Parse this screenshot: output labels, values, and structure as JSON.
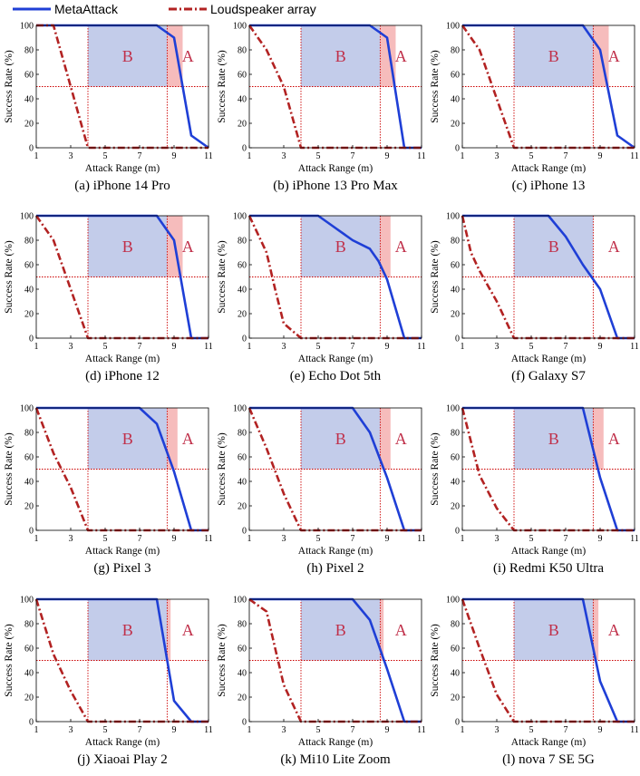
{
  "legend": {
    "entries": [
      {
        "name": "MetaAttack",
        "color": "#1f3fd6",
        "style": "solid"
      },
      {
        "name": "Loudspeaker array",
        "color": "#b22222",
        "style": "dashdot"
      }
    ]
  },
  "colors": {
    "meta": "#1f3fd6",
    "loud": "#b22222",
    "region_b": "#b9c3e6",
    "region_a": "#f5b5b5",
    "guide": "#cc0000",
    "region_text": "#c0304a"
  },
  "chart_data": [
    {
      "type": "line",
      "title": "(a) iPhone 14 Pro",
      "xlabel": "Attack Range (m)",
      "ylabel": "Success Rate (%)",
      "xlim": [
        1,
        11
      ],
      "ylim": [
        0,
        100
      ],
      "xticks": [
        1,
        3,
        5,
        7,
        9,
        11
      ],
      "yticks": [
        0,
        20,
        40,
        60,
        80,
        100
      ],
      "region_b": [
        4,
        8.6
      ],
      "region_a": [
        8.6,
        9.5
      ],
      "region_labels": {
        "a": "A",
        "b": "B"
      },
      "series": [
        {
          "name": "MetaAttack",
          "x": [
            1,
            2,
            3,
            4,
            5,
            6,
            7,
            8,
            9,
            10,
            11
          ],
          "y": [
            100,
            100,
            100,
            100,
            100,
            100,
            100,
            100,
            90,
            10,
            0
          ]
        },
        {
          "name": "Loudspeaker array",
          "x": [
            1,
            2,
            3,
            4,
            5,
            6,
            7,
            8,
            9,
            10,
            11
          ],
          "y": [
            100,
            100,
            50,
            0,
            0,
            0,
            0,
            0,
            0,
            0,
            0
          ]
        }
      ]
    },
    {
      "type": "line",
      "title": "(b) iPhone 13 Pro Max",
      "xlabel": "Attack Range (m)",
      "ylabel": "Success Rate (%)",
      "xlim": [
        1,
        11
      ],
      "ylim": [
        0,
        100
      ],
      "xticks": [
        1,
        3,
        5,
        7,
        9,
        11
      ],
      "yticks": [
        0,
        20,
        40,
        60,
        80,
        100
      ],
      "region_b": [
        4,
        8.6
      ],
      "region_a": [
        8.6,
        9.5
      ],
      "region_labels": {
        "a": "A",
        "b": "B"
      },
      "series": [
        {
          "name": "MetaAttack",
          "x": [
            1,
            2,
            3,
            4,
            5,
            6,
            7,
            8,
            9,
            10,
            11
          ],
          "y": [
            100,
            100,
            100,
            100,
            100,
            100,
            100,
            100,
            90,
            0,
            0
          ]
        },
        {
          "name": "Loudspeaker array",
          "x": [
            1,
            2,
            3,
            4,
            5,
            6,
            7,
            8,
            9,
            10,
            11
          ],
          "y": [
            100,
            80,
            50,
            0,
            0,
            0,
            0,
            0,
            0,
            0,
            0
          ]
        }
      ]
    },
    {
      "type": "line",
      "title": "(c) iPhone 13",
      "xlabel": "Attack Range (m)",
      "ylabel": "Success Rate (%)",
      "xlim": [
        1,
        11
      ],
      "ylim": [
        0,
        100
      ],
      "xticks": [
        1,
        3,
        5,
        7,
        9,
        11
      ],
      "yticks": [
        0,
        20,
        40,
        60,
        80,
        100
      ],
      "region_b": [
        4,
        8.6
      ],
      "region_a": [
        8.6,
        9.5
      ],
      "region_labels": {
        "a": "A",
        "b": "B"
      },
      "series": [
        {
          "name": "MetaAttack",
          "x": [
            1,
            2,
            3,
            4,
            5,
            6,
            7,
            8,
            9,
            10,
            11
          ],
          "y": [
            100,
            100,
            100,
            100,
            100,
            100,
            100,
            100,
            80,
            10,
            0
          ]
        },
        {
          "name": "Loudspeaker array",
          "x": [
            1,
            2,
            3,
            4,
            5,
            6,
            7,
            8,
            9,
            10,
            11
          ],
          "y": [
            100,
            80,
            40,
            0,
            0,
            0,
            0,
            0,
            0,
            0,
            0
          ]
        }
      ]
    },
    {
      "type": "line",
      "title": "(d) iPhone 12",
      "xlabel": "Attack Range (m)",
      "ylabel": "Success Rate (%)",
      "xlim": [
        1,
        11
      ],
      "ylim": [
        0,
        100
      ],
      "xticks": [
        1,
        3,
        5,
        7,
        9,
        11
      ],
      "yticks": [
        0,
        20,
        40,
        60,
        80,
        100
      ],
      "region_b": [
        4,
        8.6
      ],
      "region_a": [
        8.6,
        9.5
      ],
      "region_labels": {
        "a": "A",
        "b": "B"
      },
      "series": [
        {
          "name": "MetaAttack",
          "x": [
            1,
            2,
            3,
            4,
            5,
            6,
            7,
            8,
            9,
            10,
            11
          ],
          "y": [
            100,
            100,
            100,
            100,
            100,
            100,
            100,
            100,
            80,
            0,
            0
          ]
        },
        {
          "name": "Loudspeaker array",
          "x": [
            1,
            2,
            3,
            4,
            5,
            6,
            7,
            8,
            9,
            10,
            11
          ],
          "y": [
            100,
            80,
            40,
            0,
            0,
            0,
            0,
            0,
            0,
            0,
            0
          ]
        }
      ]
    },
    {
      "type": "line",
      "title": "(e) Echo Dot 5th",
      "xlabel": "Attack Range (m)",
      "ylabel": "Success Rate (%)",
      "xlim": [
        1,
        11
      ],
      "ylim": [
        0,
        100
      ],
      "xticks": [
        1,
        3,
        5,
        7,
        9,
        11
      ],
      "yticks": [
        0,
        20,
        40,
        60,
        80,
        100
      ],
      "region_b": [
        4,
        8.6
      ],
      "region_a": [
        8.6,
        9.2
      ],
      "region_labels": {
        "a": "A",
        "b": "B"
      },
      "series": [
        {
          "name": "MetaAttack",
          "x": [
            1,
            2,
            3,
            4,
            5,
            6,
            7,
            8,
            8.5,
            9,
            10,
            11
          ],
          "y": [
            100,
            100,
            100,
            100,
            100,
            90,
            80,
            73,
            63,
            48,
            0,
            0
          ]
        },
        {
          "name": "Loudspeaker array",
          "x": [
            1,
            2,
            2.5,
            3,
            4,
            5,
            6,
            7,
            8,
            9,
            10,
            11
          ],
          "y": [
            100,
            70,
            40,
            12,
            0,
            0,
            0,
            0,
            0,
            0,
            0,
            0
          ]
        }
      ]
    },
    {
      "type": "line",
      "title": "(f) Galaxy S7",
      "xlabel": "Attack Range (m)",
      "ylabel": "Success Rate (%)",
      "xlim": [
        1,
        11
      ],
      "ylim": [
        0,
        100
      ],
      "xticks": [
        1,
        3,
        5,
        7,
        9,
        11
      ],
      "yticks": [
        0,
        20,
        40,
        60,
        80,
        100
      ],
      "region_b": [
        4,
        8.6
      ],
      "region_a": null,
      "region_labels": {
        "a": "A",
        "b": "B"
      },
      "series": [
        {
          "name": "MetaAttack",
          "x": [
            1,
            2,
            3,
            4,
            5,
            6,
            7,
            8,
            9,
            10,
            11
          ],
          "y": [
            100,
            100,
            100,
            100,
            100,
            100,
            83,
            60,
            40,
            0,
            0
          ]
        },
        {
          "name": "Loudspeaker array",
          "x": [
            1,
            1.5,
            2,
            3,
            4,
            5,
            6,
            7,
            8,
            9,
            10,
            11
          ],
          "y": [
            100,
            70,
            55,
            30,
            0,
            0,
            0,
            0,
            0,
            0,
            0,
            0
          ]
        }
      ]
    },
    {
      "type": "line",
      "title": "(g) Pixel 3",
      "xlabel": "Attack Range (m)",
      "ylabel": "Success Rate (%)",
      "xlim": [
        1,
        11
      ],
      "ylim": [
        0,
        100
      ],
      "xticks": [
        1,
        3,
        5,
        7,
        9,
        11
      ],
      "yticks": [
        0,
        20,
        40,
        60,
        80,
        100
      ],
      "region_b": [
        4,
        8.6
      ],
      "region_a": [
        8.6,
        9.2
      ],
      "region_labels": {
        "a": "A",
        "b": "B"
      },
      "series": [
        {
          "name": "MetaAttack",
          "x": [
            1,
            2,
            3,
            4,
            5,
            6,
            7,
            8,
            9,
            10,
            11
          ],
          "y": [
            100,
            100,
            100,
            100,
            100,
            100,
            100,
            87,
            48,
            0,
            0
          ]
        },
        {
          "name": "Loudspeaker array",
          "x": [
            1,
            2,
            3,
            4,
            5,
            6,
            7,
            8,
            9,
            10,
            11
          ],
          "y": [
            100,
            63,
            35,
            0,
            0,
            0,
            0,
            0,
            0,
            0,
            0
          ]
        }
      ]
    },
    {
      "type": "line",
      "title": "(h) Pixel 2",
      "xlabel": "Attack Range (m)",
      "ylabel": "Success Rate (%)",
      "xlim": [
        1,
        11
      ],
      "ylim": [
        0,
        100
      ],
      "xticks": [
        1,
        3,
        5,
        7,
        9,
        11
      ],
      "yticks": [
        0,
        20,
        40,
        60,
        80,
        100
      ],
      "region_b": [
        4,
        8.6
      ],
      "region_a": [
        8.6,
        9.2
      ],
      "region_labels": {
        "a": "A",
        "b": "B"
      },
      "series": [
        {
          "name": "MetaAttack",
          "x": [
            1,
            2,
            3,
            4,
            5,
            6,
            7,
            8,
            9,
            10,
            11
          ],
          "y": [
            100,
            100,
            100,
            100,
            100,
            100,
            100,
            80,
            43,
            0,
            0
          ]
        },
        {
          "name": "Loudspeaker array",
          "x": [
            1,
            2,
            3,
            4,
            5,
            6,
            7,
            8,
            9,
            10,
            11
          ],
          "y": [
            100,
            67,
            30,
            0,
            0,
            0,
            0,
            0,
            0,
            0,
            0
          ]
        }
      ]
    },
    {
      "type": "line",
      "title": "(i) Redmi K50 Ultra",
      "xlabel": "Attack Range (m)",
      "ylabel": "Success Rate (%)",
      "xlim": [
        1,
        11
      ],
      "ylim": [
        0,
        100
      ],
      "xticks": [
        1,
        3,
        5,
        7,
        9,
        11
      ],
      "yticks": [
        0,
        20,
        40,
        60,
        80,
        100
      ],
      "region_b": [
        4,
        8.6
      ],
      "region_a": [
        8.6,
        9.2
      ],
      "region_labels": {
        "a": "A",
        "b": "B"
      },
      "series": [
        {
          "name": "MetaAttack",
          "x": [
            1,
            2,
            3,
            4,
            5,
            6,
            7,
            8,
            9,
            10,
            11
          ],
          "y": [
            100,
            100,
            100,
            100,
            100,
            100,
            100,
            100,
            43,
            0,
            0
          ]
        },
        {
          "name": "Loudspeaker array",
          "x": [
            1,
            2,
            3,
            4,
            5,
            6,
            7,
            8,
            9,
            10,
            11
          ],
          "y": [
            100,
            45,
            18,
            0,
            0,
            0,
            0,
            0,
            0,
            0,
            0
          ]
        }
      ]
    },
    {
      "type": "line",
      "title": "(j) Xiaoai Play 2",
      "xlabel": "Attack Range (m)",
      "ylabel": "Success Rate (%)",
      "xlim": [
        1,
        11
      ],
      "ylim": [
        0,
        100
      ],
      "xticks": [
        1,
        3,
        5,
        7,
        9,
        11
      ],
      "yticks": [
        0,
        20,
        40,
        60,
        80,
        100
      ],
      "region_b": [
        4,
        8.6
      ],
      "region_a": [
        8.6,
        8.8
      ],
      "region_labels": {
        "a": "A",
        "b": "B"
      },
      "series": [
        {
          "name": "MetaAttack",
          "x": [
            1,
            2,
            3,
            4,
            5,
            6,
            7,
            8,
            9,
            10,
            11
          ],
          "y": [
            100,
            100,
            100,
            100,
            100,
            100,
            100,
            100,
            17,
            0,
            0
          ]
        },
        {
          "name": "Loudspeaker array",
          "x": [
            1,
            2,
            3,
            4,
            5,
            6,
            7,
            8,
            9,
            10,
            11
          ],
          "y": [
            100,
            55,
            25,
            0,
            0,
            0,
            0,
            0,
            0,
            0,
            0
          ]
        }
      ]
    },
    {
      "type": "line",
      "title": "(k) Mi10 Lite Zoom",
      "xlabel": "Attack Range (m)",
      "ylabel": "Success Rate (%)",
      "xlim": [
        1,
        11
      ],
      "ylim": [
        0,
        100
      ],
      "xticks": [
        1,
        3,
        5,
        7,
        9,
        11
      ],
      "yticks": [
        0,
        20,
        40,
        60,
        80,
        100
      ],
      "region_b": [
        4,
        8.6
      ],
      "region_a": [
        8.6,
        8.8
      ],
      "region_labels": {
        "a": "A",
        "b": "B"
      },
      "series": [
        {
          "name": "MetaAttack",
          "x": [
            1,
            2,
            3,
            4,
            5,
            6,
            7,
            8,
            9,
            10,
            11
          ],
          "y": [
            100,
            100,
            100,
            100,
            100,
            100,
            100,
            83,
            43,
            0,
            0
          ]
        },
        {
          "name": "Loudspeaker array",
          "x": [
            1,
            2,
            3,
            4,
            5,
            6,
            7,
            8,
            9,
            10,
            11
          ],
          "y": [
            100,
            90,
            30,
            0,
            0,
            0,
            0,
            0,
            0,
            0,
            0
          ]
        }
      ]
    },
    {
      "type": "line",
      "title": "(l) nova 7 SE 5G",
      "xlabel": "Attack Range (m)",
      "ylabel": "Success Rate (%)",
      "xlim": [
        1,
        11
      ],
      "ylim": [
        0,
        100
      ],
      "xticks": [
        1,
        3,
        5,
        7,
        9,
        11
      ],
      "yticks": [
        0,
        20,
        40,
        60,
        80,
        100
      ],
      "region_b": [
        4,
        8.6
      ],
      "region_a": [
        8.6,
        8.9
      ],
      "region_labels": {
        "a": "A",
        "b": "B"
      },
      "series": [
        {
          "name": "MetaAttack",
          "x": [
            1,
            2,
            3,
            4,
            5,
            6,
            7,
            8,
            9,
            10,
            11
          ],
          "y": [
            100,
            100,
            100,
            100,
            100,
            100,
            100,
            100,
            33,
            0,
            0
          ]
        },
        {
          "name": "Loudspeaker array",
          "x": [
            1,
            2,
            3,
            4,
            5,
            6,
            7,
            8,
            9,
            10,
            11
          ],
          "y": [
            100,
            60,
            22,
            0,
            0,
            0,
            0,
            0,
            0,
            0,
            0
          ]
        }
      ]
    }
  ]
}
